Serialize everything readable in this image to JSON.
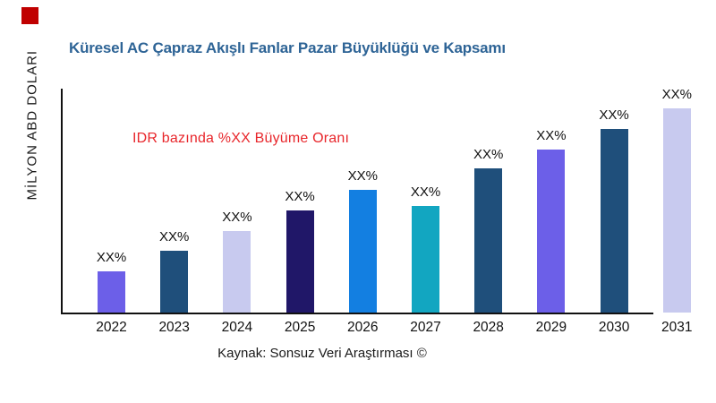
{
  "page": {
    "background": "#ffffff",
    "logo_mark_color": "#c00000",
    "axis_color": "#111111",
    "text_color": "#111111"
  },
  "header": {
    "title": "Küresel AC Çapraz Akışlı Fanlar Pazar Büyüklüğü ve Kapsamı",
    "title_color": "#2e6496"
  },
  "annotation": {
    "text": "IDR bazında %XX Büyüme Oranı",
    "color": "#e8262b"
  },
  "y_axis": {
    "label": "MİLYON ABD DOLARI"
  },
  "footer": {
    "source": "Kaynak: Sonsuz Veri Araştırması ©"
  },
  "chart_data": {
    "type": "bar",
    "title": "Küresel AC Çapraz Akışlı Fanlar Pazar Büyüklüğü ve Kapsamı",
    "xlabel": "",
    "ylabel": "MİLYON ABD DOLARI",
    "categories": [
      "2022",
      "2023",
      "2024",
      "2025",
      "2026",
      "2027",
      "2028",
      "2029",
      "2030",
      "2031"
    ],
    "values": [
      46,
      69,
      91,
      114,
      137,
      119,
      161,
      182,
      205,
      228
    ],
    "values_note": "relative bar heights; numeric y values are not shown in the chart (labels are placeholders)",
    "value_labels": [
      "XX%",
      "XX%",
      "XX%",
      "XX%",
      "XX%",
      "XX%",
      "XX%",
      "XX%",
      "XX%",
      "XX%"
    ],
    "bar_colors": [
      "#6c5fe8",
      "#1f4f7b",
      "#c8caef",
      "#201768",
      "#137fe1",
      "#12a6c1",
      "#1f4f7b",
      "#6c5fe8",
      "#1f4f7b",
      "#c8caef"
    ],
    "annotation": "IDR bazında %XX Büyüme Oranı",
    "source": "Kaynak: Sonsuz Veri Araştırması ©",
    "ylim": [
      0,
      250
    ],
    "y_axis_ticks": [],
    "grid": false,
    "legend": false
  }
}
